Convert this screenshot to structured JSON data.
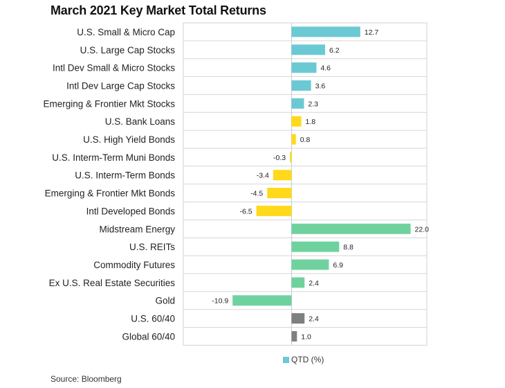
{
  "title": "March 2021 Key Market Total Returns",
  "source": "Source: Bloomberg",
  "legend": {
    "label": "QTD (%)",
    "color": "#6bc9d4"
  },
  "colors": {
    "cyan": "#6bc9d4",
    "yellow": "#ffd91a",
    "green": "#6fd29e",
    "gray": "#7f7f7f"
  },
  "chart_data": {
    "type": "bar",
    "orientation": "horizontal",
    "title": "March 2021 Key Market Total Returns",
    "xlim": [
      -20,
      25
    ],
    "grid": true,
    "legend_position": "bottom",
    "series": [
      {
        "name": "QTD (%)"
      }
    ],
    "categories": [
      "U.S. Small & Micro Cap",
      "U.S. Large Cap Stocks",
      "Intl Dev Small & Micro Stocks",
      "Intl Dev Large Cap Stocks",
      "Emerging & Frontier Mkt Stocks",
      "U.S. Bank Loans",
      "U.S. High Yield Bonds",
      "U.S. Interm-Term Muni Bonds",
      "U.S. Interm-Term Bonds",
      "Emerging & Frontier Mkt Bonds",
      "Intl Developed Bonds",
      "Midstream Energy",
      "U.S. REITs",
      "Commodity Futures",
      "Ex U.S. Real Estate Securities",
      "Gold",
      "U.S. 60/40",
      "Global 60/40"
    ],
    "values": [
      12.7,
      6.2,
      4.6,
      3.6,
      2.3,
      1.8,
      0.8,
      -0.3,
      -3.4,
      -4.5,
      -6.5,
      22.0,
      8.8,
      6.9,
      2.4,
      -10.9,
      2.4,
      1.0
    ],
    "value_labels": [
      "12.7",
      "6.2",
      "4.6",
      "3.6",
      "2.3",
      "1.8",
      "0.8",
      "-0.3",
      "-3.4",
      "-4.5",
      "-6.5",
      "22.0",
      "8.8",
      "6.9",
      "2.4",
      "-10.9",
      "2.4",
      "1.0"
    ],
    "bar_colors": [
      "#6bc9d4",
      "#6bc9d4",
      "#6bc9d4",
      "#6bc9d4",
      "#6bc9d4",
      "#ffd91a",
      "#ffd91a",
      "#ffd91a",
      "#ffd91a",
      "#ffd91a",
      "#ffd91a",
      "#6fd29e",
      "#6fd29e",
      "#6fd29e",
      "#6fd29e",
      "#6fd29e",
      "#7f7f7f",
      "#7f7f7f"
    ]
  }
}
